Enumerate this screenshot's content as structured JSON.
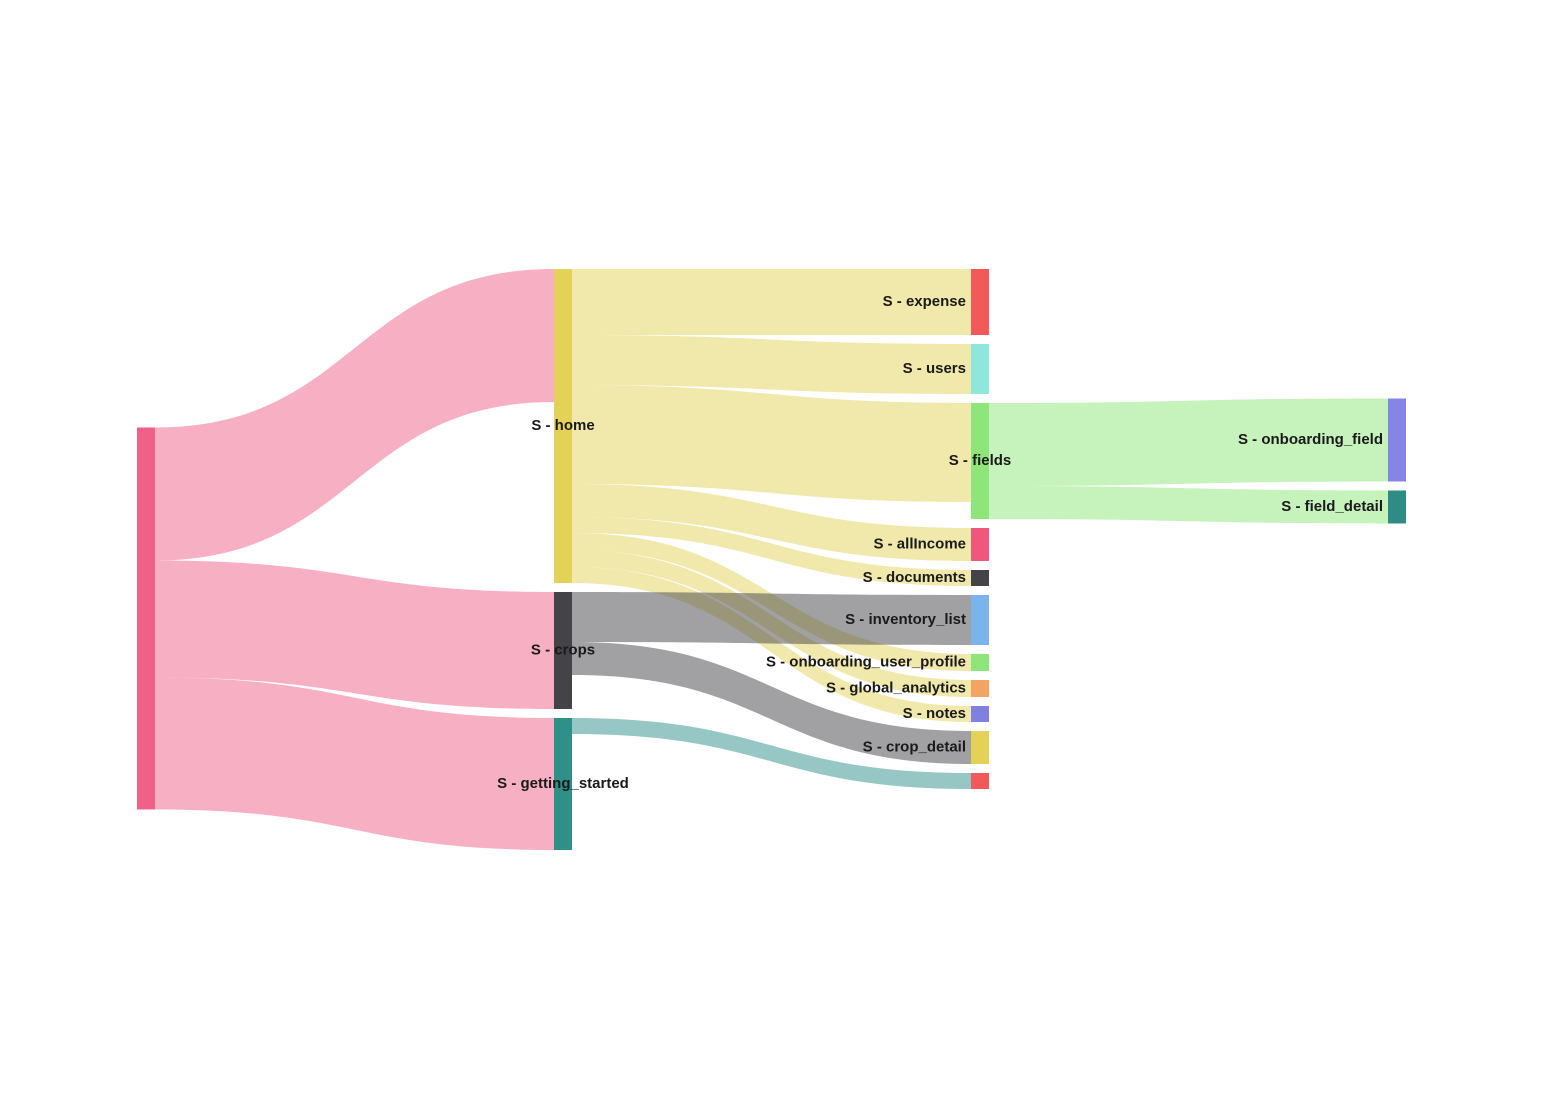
{
  "chart_data": {
    "type": "sankey",
    "nodes": [
      {
        "name": null,
        "color": "#f06088"
      },
      {
        "name": "S - home",
        "color": "#e4d158"
      },
      {
        "name": "S - crops",
        "color": "#444448"
      },
      {
        "name": "S - getting_started",
        "color": "#2e9089"
      },
      {
        "name": "S - expense",
        "color": "#f25a5a"
      },
      {
        "name": "S - users",
        "color": "#8fe6dc"
      },
      {
        "name": "S - fields",
        "color": "#8ee67a"
      },
      {
        "name": "S - allIncome",
        "color": "#f0577f"
      },
      {
        "name": "S - documents",
        "color": "#444448"
      },
      {
        "name": "S - inventory_list",
        "color": "#7ab4ec"
      },
      {
        "name": "S - onboarding_user_profile",
        "color": "#8ee67a"
      },
      {
        "name": "S - global_analytics",
        "color": "#f4a462"
      },
      {
        "name": "S - notes",
        "color": "#8080e0"
      },
      {
        "name": "S - crop_detail",
        "color": "#e4d158"
      },
      {
        "name": null,
        "color": "#f05a5a"
      },
      {
        "name": "S - onboarding_field",
        "color": "#8585e6"
      },
      {
        "name": "S - field_detail",
        "color": "#2e8c85"
      }
    ],
    "links": [
      {
        "source": 0,
        "target": 1,
        "value": 133
      },
      {
        "source": 0,
        "target": 2,
        "value": 117
      },
      {
        "source": 0,
        "target": 3,
        "value": 132
      },
      {
        "source": 1,
        "target": 4,
        "value": 66
      },
      {
        "source": 1,
        "target": 5,
        "value": 50
      },
      {
        "source": 1,
        "target": 6,
        "value": 99
      },
      {
        "source": 1,
        "target": 7,
        "value": 33
      },
      {
        "source": 1,
        "target": 8,
        "value": 16
      },
      {
        "source": 1,
        "target": 10,
        "value": 17
      },
      {
        "source": 1,
        "target": 11,
        "value": 17
      },
      {
        "source": 1,
        "target": 12,
        "value": 16
      },
      {
        "source": 2,
        "target": 9,
        "value": 50
      },
      {
        "source": 2,
        "target": 13,
        "value": 33
      },
      {
        "source": 3,
        "target": 14,
        "value": 16
      },
      {
        "source": 6,
        "target": 15,
        "value": 83
      },
      {
        "source": 6,
        "target": 16,
        "value": 33
      }
    ]
  }
}
